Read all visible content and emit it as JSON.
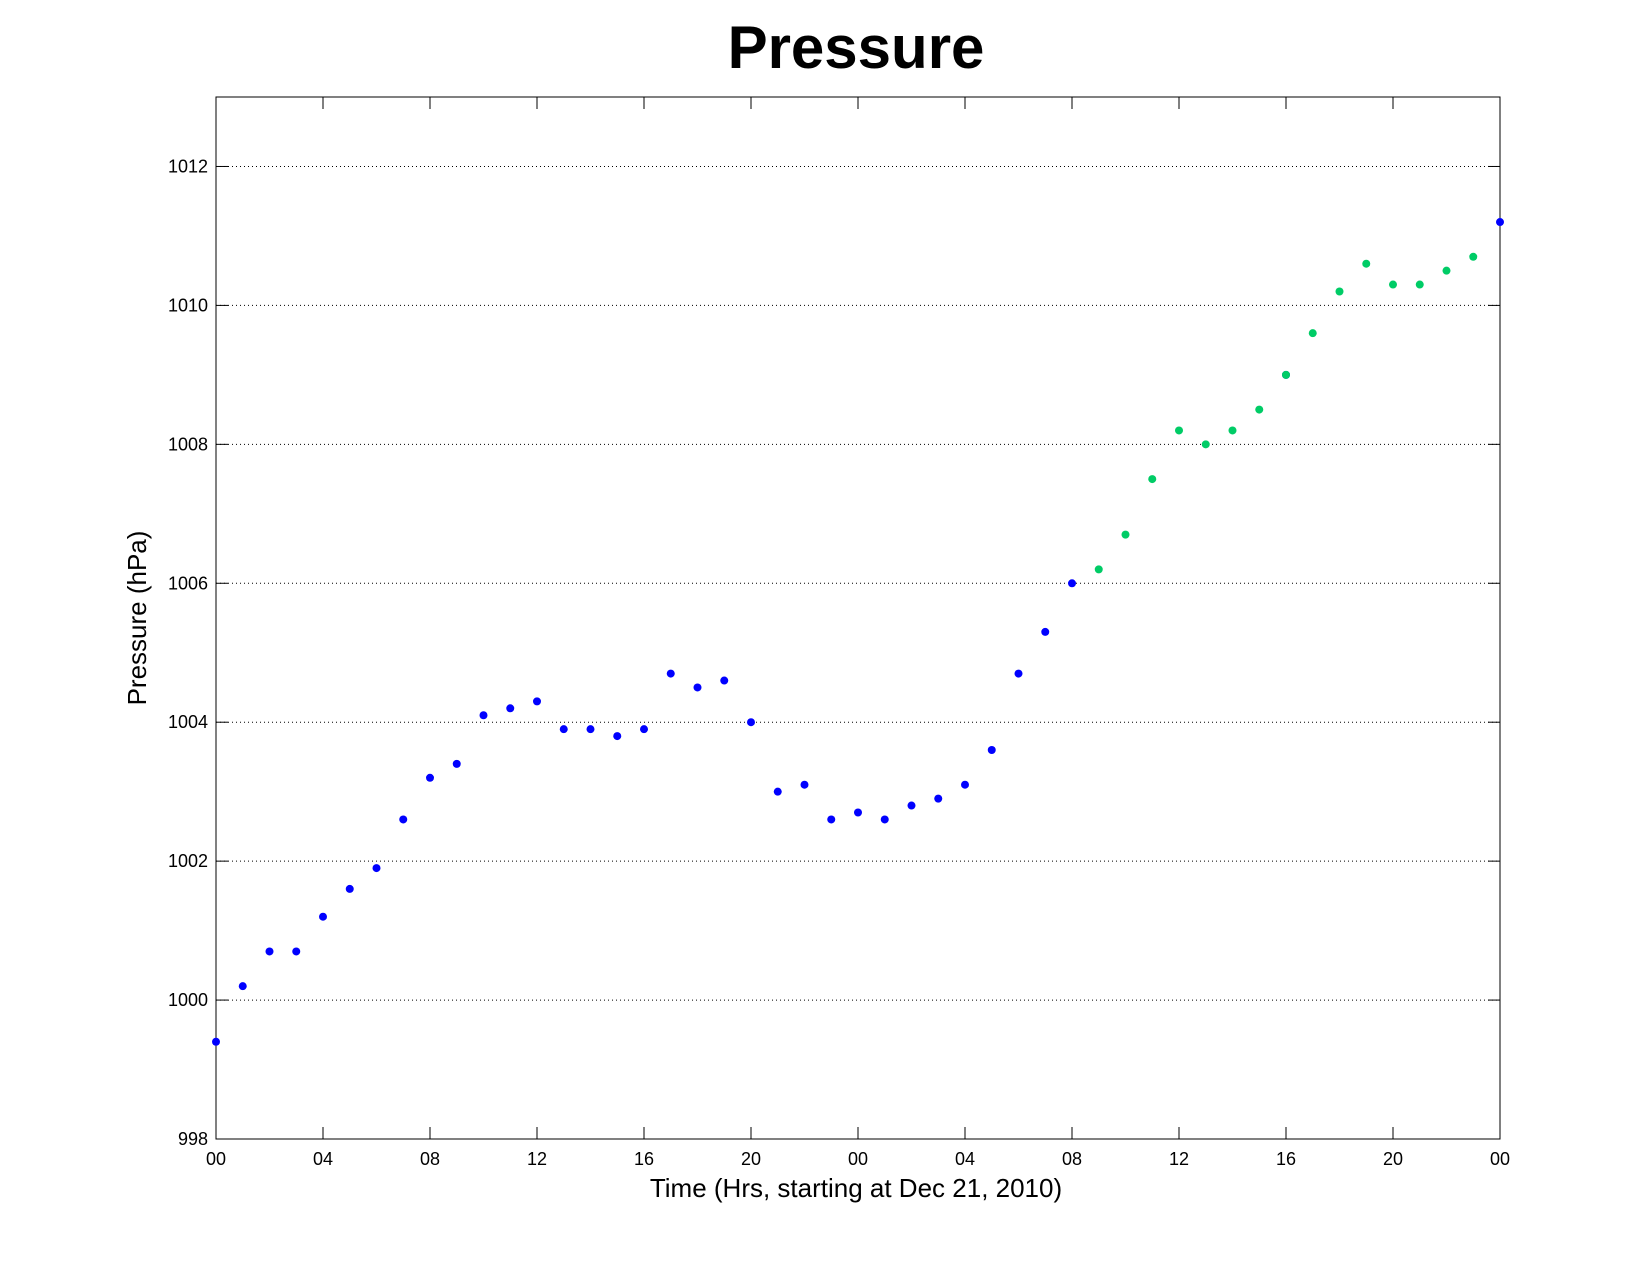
{
  "chart_data": {
    "type": "scatter",
    "title": "Pressure",
    "xlabel": "Time (Hrs, starting at Dec 21, 2010)",
    "ylabel": "Pressure (hPa)",
    "xlim": [
      0,
      48
    ],
    "ylim": [
      998,
      1013
    ],
    "x_ticks": [
      0,
      4,
      8,
      12,
      16,
      20,
      24,
      28,
      32,
      36,
      40,
      44,
      48
    ],
    "x_tick_labels": [
      "00",
      "04",
      "08",
      "12",
      "16",
      "20",
      "00",
      "04",
      "08",
      "12",
      "16",
      "20",
      "00"
    ],
    "y_ticks": [
      998,
      1000,
      1002,
      1004,
      1006,
      1008,
      1010,
      1012
    ],
    "y_tick_labels": [
      "998",
      "1000",
      "1002",
      "1004",
      "1006",
      "1008",
      "1010",
      "1012"
    ],
    "grid": "horizontal dotted",
    "series": [
      {
        "color": "#0000ff",
        "x": [
          0,
          1,
          2,
          3,
          4,
          5,
          6,
          7,
          8,
          9,
          10,
          11,
          12,
          13,
          14,
          15,
          16,
          17,
          18,
          19,
          20,
          21,
          22,
          23,
          24,
          25,
          26,
          27,
          28,
          29,
          30,
          31,
          32,
          40,
          48
        ],
        "y": [
          999.4,
          1000.2,
          1000.7,
          1000.7,
          1001.2,
          1001.6,
          1001.9,
          1002.6,
          1003.2,
          1003.4,
          1004.1,
          1004.2,
          1004.3,
          1003.9,
          1003.9,
          1003.8,
          1003.9,
          1004.7,
          1004.5,
          1004.6,
          1004.0,
          1003.0,
          1003.1,
          1002.6,
          1002.7,
          1002.6,
          1002.8,
          1002.9,
          1003.1,
          1003.6,
          1004.7,
          1005.3,
          1006.0,
          1009.0,
          1011.2
        ]
      },
      {
        "color": "#00cc66",
        "x": [
          33,
          34,
          35,
          36,
          37,
          38,
          39,
          40,
          41,
          42,
          43,
          44,
          45,
          46,
          47
        ],
        "y": [
          1006.2,
          1006.7,
          1007.5,
          1008.2,
          1008.0,
          1008.2,
          1008.5,
          1009.0,
          1009.6,
          1010.2,
          1010.6,
          1010.3,
          1010.3,
          1010.5,
          1010.7
        ]
      }
    ]
  }
}
